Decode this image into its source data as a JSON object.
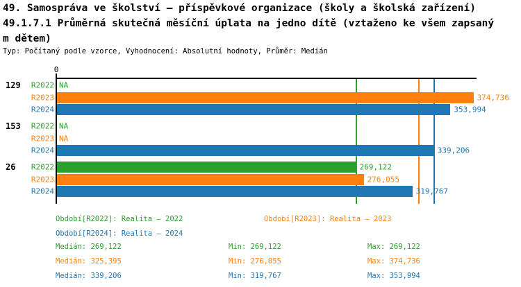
{
  "title": {
    "line1": "49. Samospráva ve školství – příspěvkové organizace (školy a školská zařízení)",
    "line2": "49.1.7.1 Průměrná skutečná měsíční úplata na jedno dítě (vztaženo ke všem zapsaný",
    "line3": "m dětem)",
    "subtitle": "Typ: Počítaný podle vzorce, Vyhodnocení: Absolutní hodnoty, Průměr: Medián"
  },
  "colors": {
    "R2022": "#2ca02c",
    "R2023": "#ff7f0e",
    "R2024": "#1f77b4",
    "axis": "#000000",
    "background": "#ffffff"
  },
  "chart_data": {
    "type": "bar",
    "orientation": "horizontal",
    "title": "49.1.7.1 Průměrná skutečná měsíční úplata na jedno dítě (vztaženo ke všem zapsaným dětem)",
    "xlim": [
      0,
      377500
    ],
    "x_axis_ticks": [
      "0"
    ],
    "grid": false,
    "series_names": [
      "R2022",
      "R2023",
      "R2024"
    ],
    "groups": [
      {
        "label": "129",
        "bars": [
          {
            "series": "R2022",
            "value": null,
            "display": "NA"
          },
          {
            "series": "R2023",
            "value": 374736,
            "display": "374,736"
          },
          {
            "series": "R2024",
            "value": 353994,
            "display": "353,994"
          }
        ]
      },
      {
        "label": "153",
        "bars": [
          {
            "series": "R2022",
            "value": null,
            "display": "NA"
          },
          {
            "series": "R2023",
            "value": null,
            "display": "NA"
          },
          {
            "series": "R2024",
            "value": 339206,
            "display": "339,206"
          }
        ]
      },
      {
        "label": "26",
        "bars": [
          {
            "series": "R2022",
            "value": 269122,
            "display": "269,122"
          },
          {
            "series": "R2023",
            "value": 276055,
            "display": "276,055"
          },
          {
            "series": "R2024",
            "value": 319767,
            "display": "319,767"
          }
        ]
      }
    ],
    "median_lines": [
      {
        "series": "R2022",
        "value": 269122
      },
      {
        "series": "R2023",
        "value": 325395
      },
      {
        "series": "R2024",
        "value": 339206
      }
    ],
    "legend": [
      {
        "series": "R2022",
        "label": "Období[R2022]: Realita – 2022"
      },
      {
        "series": "R2023",
        "label": "Období[R2023]: Realita – 2023"
      },
      {
        "series": "R2024",
        "label": "Období[R2024]: Realita – 2024"
      }
    ],
    "stats": [
      {
        "series": "R2022",
        "median": 269122,
        "min": 269122,
        "max": 269122,
        "median_text": "Medián: 269,122",
        "min_text": "Min: 269,122",
        "max_text": "Max: 269,122"
      },
      {
        "series": "R2023",
        "median": 325395,
        "min": 276055,
        "max": 374736,
        "median_text": "Medián: 325,395",
        "min_text": "Min: 276,055",
        "max_text": "Max: 374,736"
      },
      {
        "series": "R2024",
        "median": 339206,
        "min": 319767,
        "max": 353994,
        "median_text": "Medián: 339,206",
        "min_text": "Min: 319,767",
        "max_text": "Max: 353,994"
      }
    ]
  }
}
